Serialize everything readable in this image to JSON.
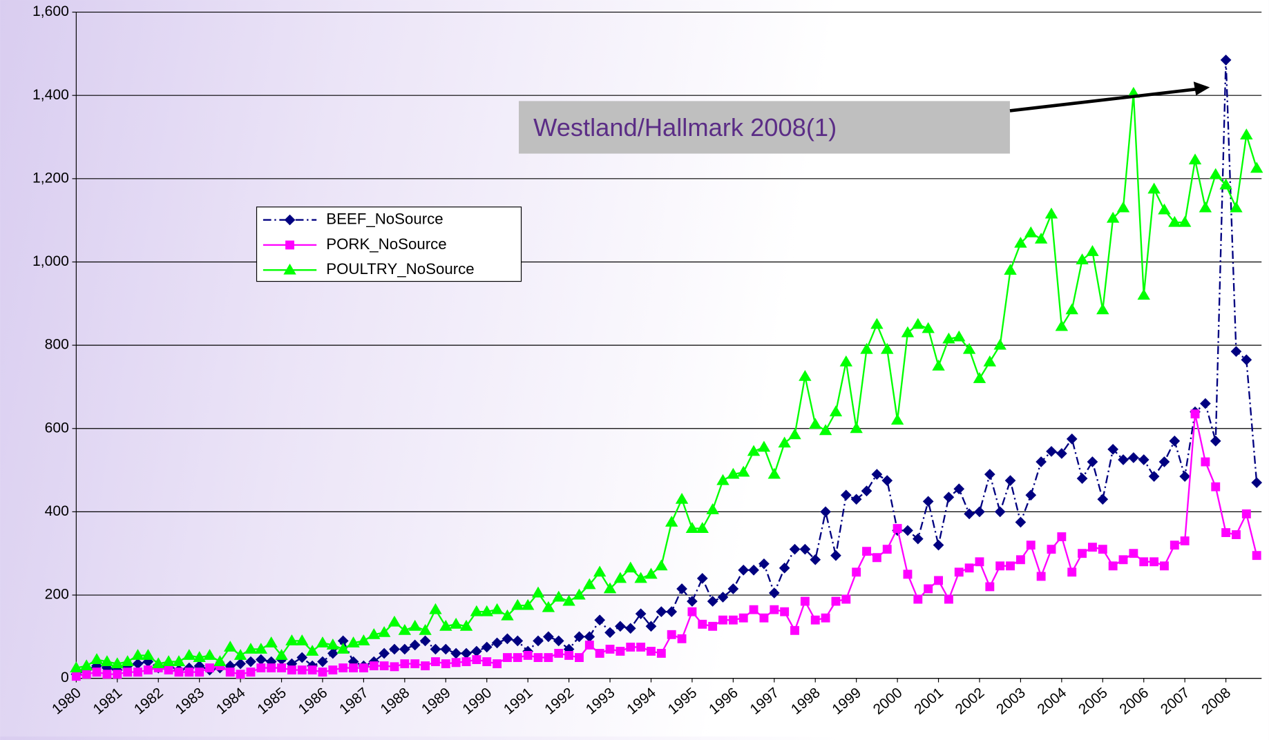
{
  "chart_data": {
    "type": "line",
    "annotation": "Westland/Hallmark 2008(1)",
    "categories": [
      "1980",
      null,
      null,
      null,
      "1981",
      null,
      null,
      null,
      "1982",
      null,
      null,
      null,
      "1983",
      null,
      null,
      null,
      "1984",
      null,
      null,
      null,
      "1985",
      null,
      null,
      null,
      "1986",
      null,
      null,
      null,
      "1987",
      null,
      null,
      null,
      "1988",
      null,
      null,
      null,
      "1989",
      null,
      null,
      null,
      "1990",
      null,
      null,
      null,
      "1991",
      null,
      null,
      null,
      "1992",
      null,
      null,
      null,
      "1993",
      null,
      null,
      null,
      "1994",
      null,
      null,
      null,
      "1995",
      null,
      null,
      null,
      "1996",
      null,
      null,
      null,
      "1997",
      null,
      null,
      null,
      "1998",
      null,
      null,
      null,
      "1999",
      null,
      null,
      null,
      "2000",
      null,
      null,
      null,
      "2001",
      null,
      null,
      null,
      "2002",
      null,
      null,
      null,
      "2003",
      null,
      null,
      null,
      "2004",
      null,
      null,
      null,
      "2005",
      null,
      null,
      null,
      "2006",
      null,
      null,
      null,
      "2007",
      null,
      null,
      null,
      "2008",
      null,
      null,
      null
    ],
    "ylim": [
      0,
      1600
    ],
    "yticks": [
      0,
      200,
      400,
      600,
      800,
      {
        "value": 1000,
        "label": "1,000"
      },
      {
        "value": 1200,
        "label": "1,200"
      },
      {
        "value": 1400,
        "label": "1,400"
      },
      {
        "value": 1600,
        "label": "1,600"
      }
    ],
    "grid": true,
    "series": [
      {
        "name": "BEEF_NoSource",
        "color": "#000080",
        "marker": "diamond",
        "dash": "dashdot",
        "values": [
          10,
          20,
          30,
          25,
          20,
          30,
          35,
          40,
          25,
          30,
          20,
          25,
          30,
          20,
          25,
          30,
          35,
          40,
          45,
          40,
          45,
          35,
          50,
          30,
          40,
          60,
          90,
          40,
          30,
          40,
          60,
          70,
          70,
          80,
          90,
          70,
          70,
          60,
          60,
          65,
          75,
          85,
          95,
          90,
          65,
          90,
          100,
          90,
          70,
          100,
          100,
          140,
          110,
          125,
          120,
          155,
          125,
          160,
          160,
          215,
          185,
          240,
          185,
          195,
          215,
          260,
          260,
          275,
          205,
          265,
          310,
          310,
          285,
          400,
          295,
          440,
          430,
          450,
          490,
          475,
          355,
          355,
          335,
          425,
          320,
          435,
          455,
          395,
          400,
          490,
          400,
          475,
          375,
          440,
          520,
          545,
          540,
          575,
          480,
          520,
          430,
          550,
          525,
          530,
          525,
          485,
          520,
          570,
          485,
          640,
          660,
          570,
          1485,
          785,
          765,
          470
        ]
      },
      {
        "name": "PORK_NoSource",
        "color": "#ff00ff",
        "marker": "square",
        "dash": "solid",
        "values": [
          5,
          10,
          15,
          10,
          10,
          15,
          15,
          20,
          25,
          20,
          15,
          15,
          15,
          25,
          30,
          15,
          10,
          15,
          25,
          25,
          25,
          20,
          20,
          20,
          15,
          20,
          25,
          25,
          25,
          30,
          30,
          28,
          35,
          35,
          30,
          40,
          35,
          38,
          40,
          45,
          40,
          35,
          50,
          50,
          55,
          50,
          50,
          60,
          55,
          50,
          80,
          60,
          70,
          65,
          75,
          75,
          65,
          60,
          105,
          95,
          160,
          130,
          125,
          140,
          140,
          145,
          165,
          145,
          165,
          160,
          115,
          185,
          140,
          145,
          185,
          190,
          255,
          305,
          290,
          310,
          360,
          250,
          190,
          215,
          235,
          190,
          255,
          265,
          280,
          220,
          270,
          270,
          285,
          320,
          245,
          310,
          340,
          255,
          300,
          315,
          310,
          270,
          285,
          300,
          280,
          280,
          270,
          320,
          330,
          635,
          520,
          460,
          350,
          345,
          395,
          295
        ]
      },
      {
        "name": "POULTRY_NoSource",
        "color": "#00ff00",
        "marker": "triangle",
        "dash": "solid",
        "values": [
          25,
          30,
          45,
          40,
          35,
          40,
          55,
          55,
          35,
          40,
          40,
          55,
          50,
          55,
          40,
          75,
          55,
          70,
          70,
          85,
          55,
          90,
          90,
          65,
          85,
          80,
          70,
          85,
          90,
          105,
          110,
          135,
          115,
          125,
          115,
          165,
          125,
          130,
          125,
          160,
          160,
          165,
          150,
          175,
          175,
          205,
          170,
          195,
          185,
          200,
          225,
          255,
          215,
          240,
          265,
          240,
          250,
          270,
          375,
          430,
          360,
          360,
          405,
          475,
          490,
          495,
          545,
          555,
          490,
          565,
          585,
          725,
          610,
          595,
          640,
          760,
          600,
          790,
          850,
          790,
          620,
          830,
          850,
          840,
          750,
          815,
          820,
          790,
          720,
          760,
          800,
          980,
          1045,
          1070,
          1055,
          1115,
          845,
          885,
          1005,
          1025,
          885,
          1105,
          1130,
          1405,
          920,
          1175,
          1125,
          1095,
          1095,
          1245,
          1130,
          1210,
          1185,
          1130,
          1305,
          1225
        ]
      }
    ]
  }
}
